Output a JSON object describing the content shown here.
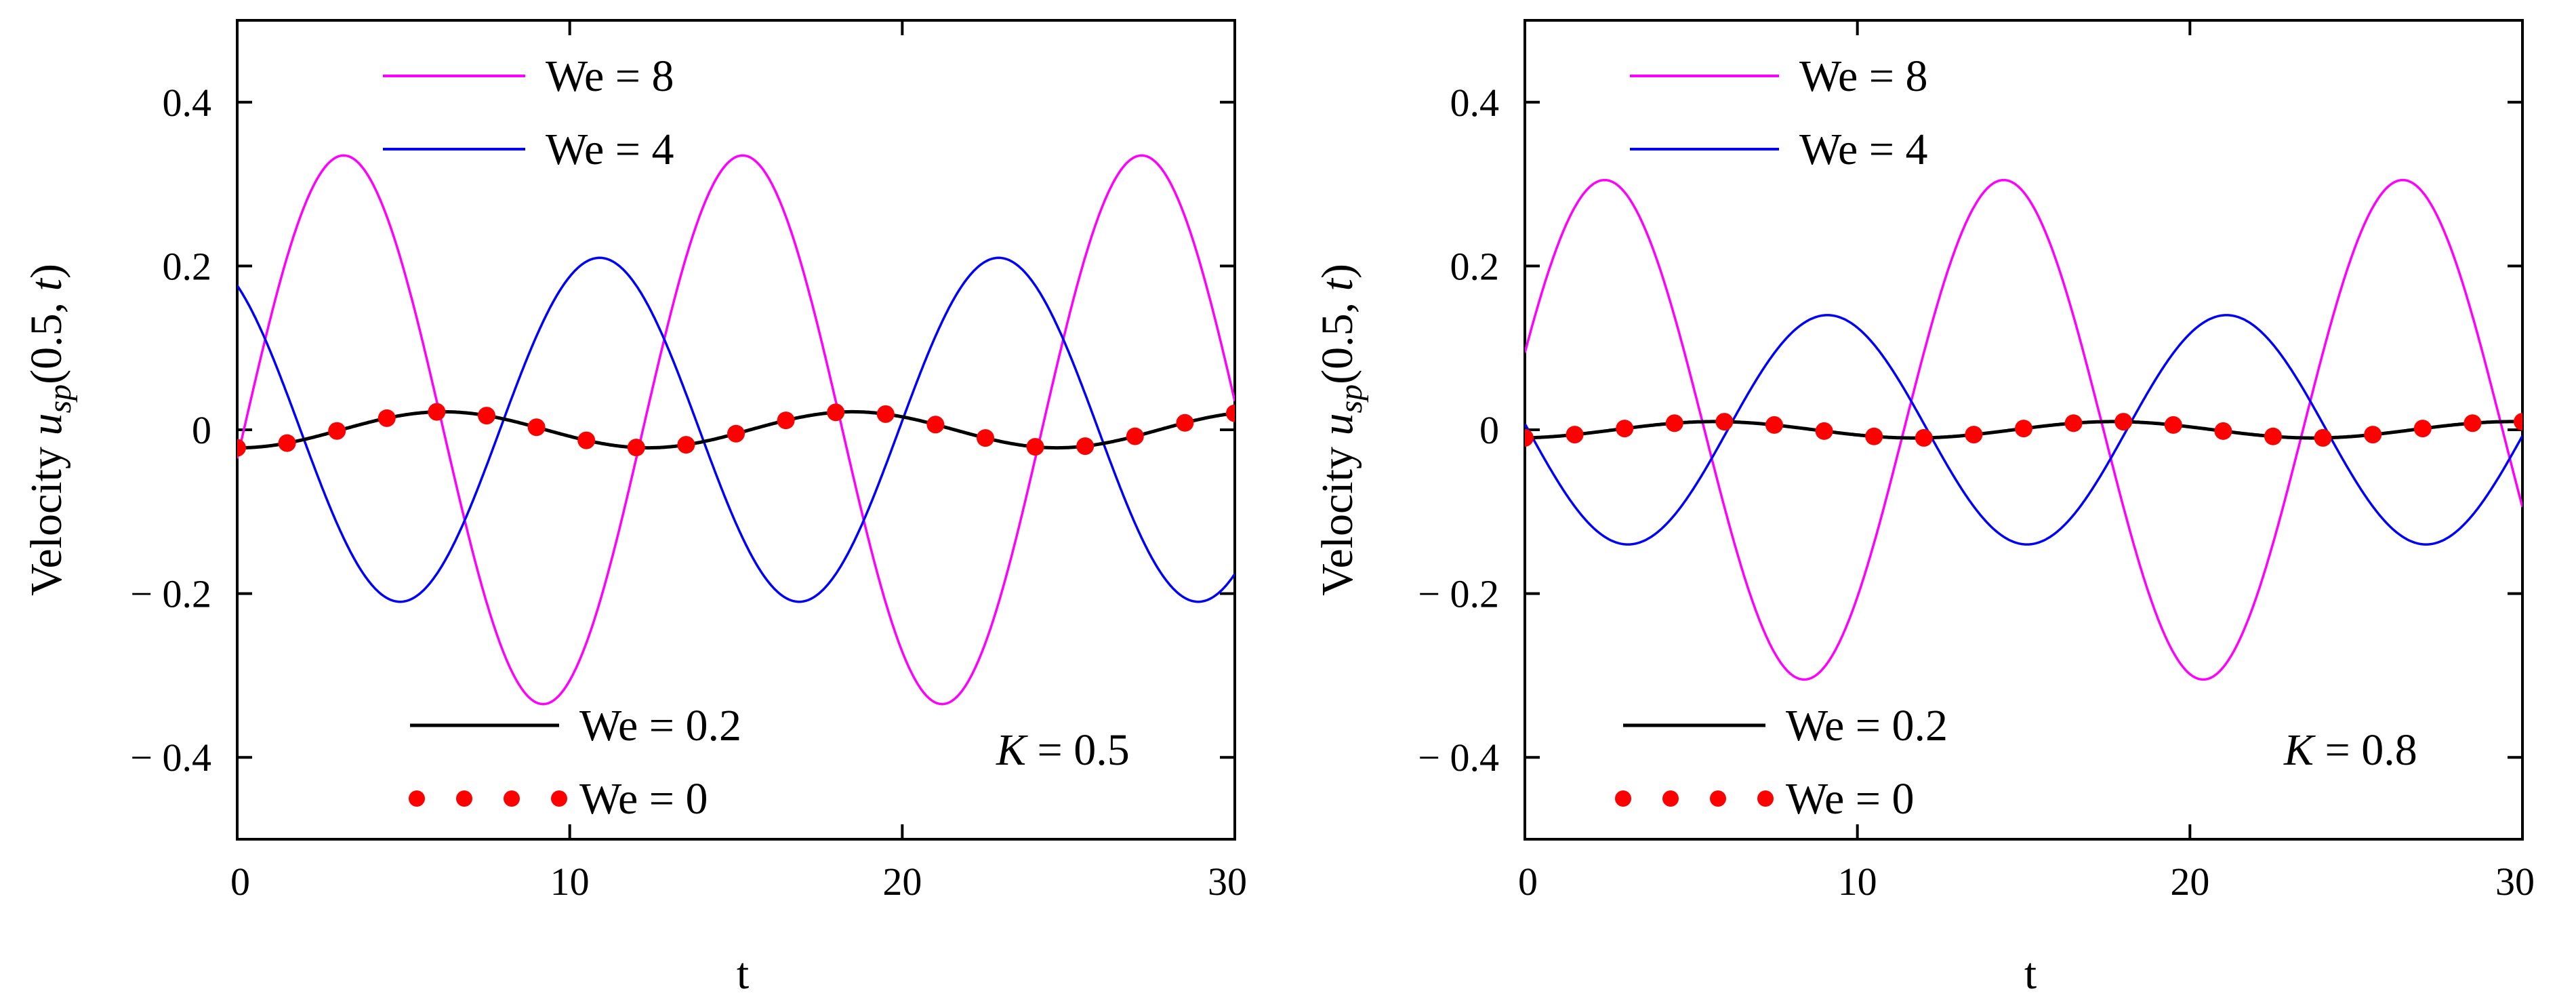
{
  "chart_data": [
    {
      "type": "line",
      "xlabel": "t",
      "ylabel": {
        "prefix": "Velocity ",
        "var": "u",
        "sub": "sp",
        "args": "(0.5, ",
        "targ": "t",
        "close": ")"
      },
      "xlim": [
        0,
        30
      ],
      "ylim": [
        -0.5,
        0.5
      ],
      "xticks": [
        0,
        10,
        20,
        30
      ],
      "xtick_labels": [
        "0",
        "10",
        "20",
        "30"
      ],
      "yticks": [
        -0.4,
        -0.2,
        0,
        0.2,
        0.4
      ],
      "ytick_labels": [
        "− 0.4",
        "− 0.2",
        "0",
        "0.2",
        "0.4"
      ],
      "annotation": {
        "var": "K",
        "text": " = 0.5"
      },
      "series": [
        {
          "name": "We = 8",
          "label": "We = 8",
          "style": "line",
          "color": "#ff00ff",
          "model": {
            "amplitude": 0.335,
            "period": 12.0,
            "phase": 3.2
          }
        },
        {
          "name": "We = 4",
          "label": "We = 4",
          "style": "line",
          "color": "#0000ff",
          "model": {
            "amplitude": 0.21,
            "period": 12.0,
            "phase": 10.9
          }
        },
        {
          "name": "We = 0.2",
          "label": "We = 0.2",
          "style": "line",
          "color": "#000000",
          "model": {
            "amplitude": 0.022,
            "period": 12.3,
            "phase": 6.2
          }
        },
        {
          "name": "We = 0",
          "label": "We = 0",
          "style": "dots",
          "color": "#ff0000",
          "model": {
            "amplitude": 0.022,
            "period": 12.3,
            "phase": 6.2
          },
          "marker_count": 21
        }
      ]
    },
    {
      "type": "line",
      "xlabel": "t",
      "ylabel": {
        "prefix": "Velocity ",
        "var": "u",
        "sub": "sp",
        "args": "(0.5, ",
        "targ": "t",
        "close": ")"
      },
      "xlim": [
        0,
        30
      ],
      "ylim": [
        -0.5,
        0.5
      ],
      "xticks": [
        0,
        10,
        20,
        30
      ],
      "xtick_labels": [
        "0",
        "10",
        "20",
        "30"
      ],
      "yticks": [
        -0.4,
        -0.2,
        0,
        0.2,
        0.4
      ],
      "ytick_labels": [
        "− 0.4",
        "− 0.2",
        "0",
        "0.2",
        "0.4"
      ],
      "annotation": {
        "var": "K",
        "text": " = 0.8"
      },
      "series": [
        {
          "name": "We = 8",
          "label": "We = 8",
          "style": "line",
          "color": "#ff00ff",
          "model": {
            "amplitude": 0.305,
            "period": 12.0,
            "phase": 2.4
          }
        },
        {
          "name": "We = 4",
          "label": "We = 4",
          "style": "line",
          "color": "#0000ff",
          "model": {
            "amplitude": 0.14,
            "period": 12.0,
            "phase": 9.1
          }
        },
        {
          "name": "We = 0.2",
          "label": "We = 0.2",
          "style": "line",
          "color": "#000000",
          "model": {
            "amplitude": 0.01,
            "period": 12.0,
            "phase": 5.7
          }
        },
        {
          "name": "We = 0",
          "label": "We = 0",
          "style": "dots",
          "color": "#ff0000",
          "model": {
            "amplitude": 0.01,
            "period": 12.0,
            "phase": 5.7
          },
          "marker_count": 21
        }
      ]
    }
  ]
}
